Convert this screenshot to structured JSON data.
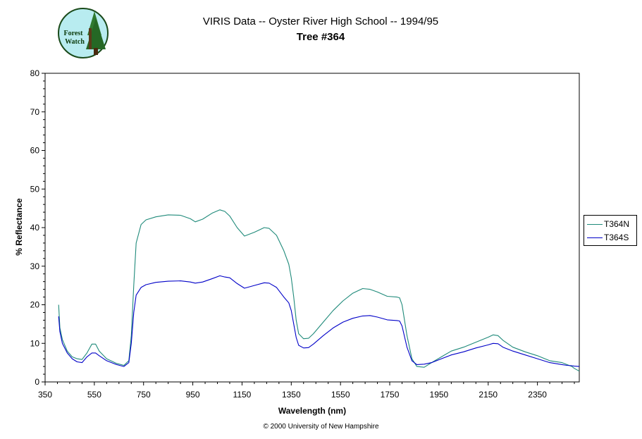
{
  "header": {
    "title_line1": "VIRIS Data -- Oyster River High School -- 1994/95",
    "title_line2": "Tree #364",
    "logo_text_top": "Forest",
    "logo_text_bottom": "Watch"
  },
  "footer": {
    "copyright": "© 2000 University of New Hampshire"
  },
  "colors": {
    "T364N": "#1f8a7a",
    "T364S": "#0000c8",
    "axis": "#000000"
  },
  "chart_data": {
    "type": "line",
    "title": "VIRIS Data -- Oyster River High School -- 1994/95",
    "subtitle": "Tree #364",
    "xlabel": "Wavelength (nm)",
    "ylabel": "% Reflectance",
    "xlim": [
      350,
      2520
    ],
    "ylim": [
      0,
      80
    ],
    "xticks": [
      350,
      550,
      750,
      950,
      1150,
      1350,
      1550,
      1750,
      1950,
      2150,
      2350
    ],
    "xtick_labels": [
      "350",
      "550",
      "750",
      "950",
      "1150",
      "1350",
      "1550",
      "1750",
      "1950",
      "2150",
      "2350"
    ],
    "yticks": [
      0,
      10,
      20,
      30,
      40,
      50,
      60,
      70,
      80
    ],
    "ytick_labels": [
      "0",
      "10",
      "20",
      "30",
      "40",
      "50",
      "60",
      "70",
      "80"
    ],
    "grid": false,
    "legend": "right",
    "series": [
      {
        "name": "T364N",
        "x": [
          405,
          410,
          420,
          440,
          460,
          480,
          500,
          520,
          540,
          555,
          570,
          600,
          640,
          670,
          690,
          700,
          710,
          720,
          740,
          760,
          800,
          850,
          900,
          940,
          960,
          990,
          1030,
          1060,
          1080,
          1100,
          1130,
          1160,
          1200,
          1240,
          1260,
          1290,
          1320,
          1340,
          1350,
          1360,
          1370,
          1380,
          1400,
          1420,
          1440,
          1480,
          1520,
          1560,
          1600,
          1640,
          1670,
          1700,
          1740,
          1780,
          1790,
          1800,
          1820,
          1840,
          1860,
          1890,
          1920,
          1960,
          2000,
          2050,
          2100,
          2150,
          2170,
          2190,
          2210,
          2250,
          2300,
          2350,
          2400,
          2450,
          2470,
          2490,
          2500,
          2520
        ],
        "y": [
          20,
          14,
          11,
          8,
          6.5,
          6,
          5.8,
          7.5,
          9.8,
          9.8,
          8,
          6,
          4.8,
          4.3,
          5.5,
          12,
          25,
          36,
          40.8,
          42,
          42.8,
          43.3,
          43.2,
          42.3,
          41.5,
          42.2,
          43.8,
          44.6,
          44.2,
          43,
          40,
          37.8,
          38.8,
          40,
          39.8,
          38,
          34,
          30.5,
          27,
          22,
          16,
          12.5,
          11.2,
          11.3,
          12.5,
          15.5,
          18.5,
          21,
          23,
          24.2,
          24,
          23.3,
          22.2,
          22,
          21.8,
          20,
          12,
          6,
          4,
          3.8,
          5,
          6.5,
          8,
          9,
          10.3,
          11.6,
          12.2,
          12,
          10.8,
          9,
          7.8,
          6.8,
          5.5,
          5,
          4.5,
          4,
          3.5,
          2.8
        ]
      },
      {
        "name": "T364S",
        "x": [
          405,
          410,
          420,
          440,
          460,
          480,
          500,
          520,
          540,
          555,
          570,
          600,
          640,
          670,
          690,
          700,
          710,
          720,
          740,
          760,
          800,
          850,
          900,
          940,
          960,
          990,
          1030,
          1060,
          1080,
          1100,
          1130,
          1160,
          1200,
          1240,
          1260,
          1290,
          1320,
          1340,
          1350,
          1360,
          1370,
          1380,
          1400,
          1420,
          1440,
          1480,
          1520,
          1560,
          1600,
          1640,
          1670,
          1700,
          1740,
          1780,
          1790,
          1800,
          1820,
          1840,
          1860,
          1890,
          1920,
          1960,
          2000,
          2050,
          2100,
          2150,
          2170,
          2190,
          2210,
          2250,
          2300,
          2350,
          2400,
          2450,
          2470,
          2490,
          2500,
          2520
        ],
        "y": [
          17,
          13,
          10,
          7.5,
          6,
          5.2,
          5,
          6.5,
          7.5,
          7.5,
          6.8,
          5.5,
          4.5,
          4,
          5,
          10,
          18,
          22.5,
          24.5,
          25.2,
          25.8,
          26.1,
          26.2,
          25.9,
          25.6,
          25.9,
          26.8,
          27.5,
          27.2,
          27,
          25.5,
          24.3,
          25,
          25.7,
          25.6,
          24.5,
          22,
          20.5,
          18.5,
          15,
          11.5,
          9.5,
          8.8,
          8.9,
          9.8,
          12,
          14,
          15.5,
          16.5,
          17.1,
          17.2,
          16.8,
          16.1,
          15.9,
          15.8,
          14.5,
          9,
          5.5,
          4.5,
          4.6,
          5,
          6,
          7,
          7.8,
          8.8,
          9.6,
          10,
          9.9,
          9,
          8,
          7,
          6,
          5,
          4.5,
          4.3,
          4.2,
          4.1,
          4
        ]
      }
    ]
  }
}
